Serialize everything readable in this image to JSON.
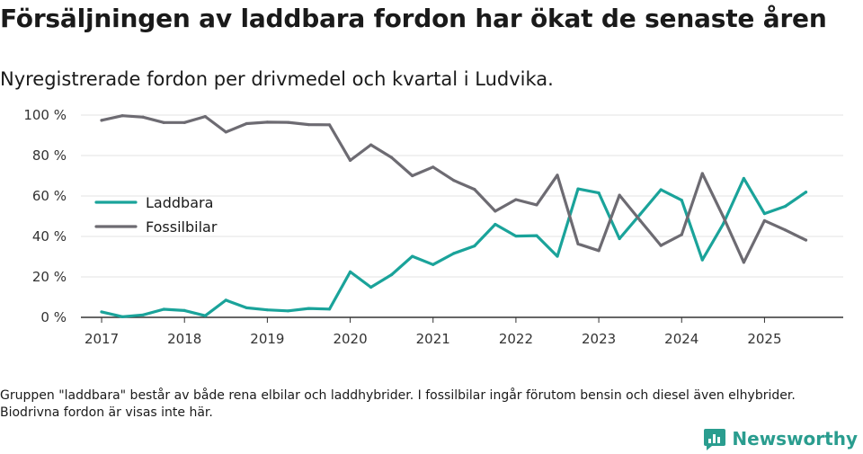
{
  "title": "Försäljningen av laddbara fordon har ökat de senaste åren",
  "subtitle": "Nyregistrerade fordon per drivmedel och kvartal i Ludvika.",
  "footnote": "Gruppen \"laddbara\" består av både rena elbilar och laddhybrider. I fossilbilar ingår förutom bensin och diesel även elhybrider. Biodrivna fordon är visas inte här.",
  "brand": {
    "name": "Newsworthy",
    "color": "#2a9d8f"
  },
  "chart_data": {
    "type": "line",
    "title": "Försäljningen av laddbara fordon har ökat de senaste åren",
    "xlabel": "",
    "ylabel": "",
    "ylim": [
      0,
      100
    ],
    "yticks": [
      0,
      20,
      40,
      60,
      80,
      100
    ],
    "ytick_labels": [
      "0 %",
      "20 %",
      "40 %",
      "60 %",
      "80 %",
      "100 %"
    ],
    "xlim": [
      2016.75,
      2025.95
    ],
    "xticks": [
      2017,
      2018,
      2019,
      2020,
      2021,
      2022,
      2023,
      2024,
      2025
    ],
    "xtick_labels": [
      "2017",
      "2018",
      "2019",
      "2020",
      "2021",
      "2022",
      "2023",
      "2024",
      "2025"
    ],
    "grid": true,
    "legend_position": "middle-left",
    "x": [
      2017.0,
      2017.25,
      2017.5,
      2017.75,
      2018.0,
      2018.25,
      2018.5,
      2018.75,
      2019.0,
      2019.25,
      2019.5,
      2019.75,
      2020.0,
      2020.25,
      2020.5,
      2020.75,
      2021.0,
      2021.25,
      2021.5,
      2021.75,
      2022.0,
      2022.25,
      2022.5,
      2022.75,
      2023.0,
      2023.25,
      2023.5,
      2023.75,
      2024.0,
      2024.25,
      2024.5,
      2024.75,
      2025.0,
      2025.25,
      2025.5
    ],
    "series": [
      {
        "name": "Laddbara",
        "color": "#1aa39a",
        "values": [
          2.7,
          0.3,
          1.2,
          4.0,
          3.4,
          0.8,
          8.5,
          4.7,
          3.7,
          3.2,
          4.4,
          4.1,
          22.5,
          14.9,
          21.1,
          30.2,
          26.1,
          31.6,
          35.3,
          46.0,
          40.2,
          40.4,
          30.2,
          63.5,
          61.5,
          38.9,
          51.0,
          63.1,
          57.9,
          28.4,
          46.0,
          68.7,
          51.3,
          54.9,
          61.9
        ]
      },
      {
        "name": "Fossilbilar",
        "color": "#6d6b72",
        "values": [
          97.4,
          99.7,
          99.0,
          96.3,
          96.3,
          99.3,
          91.6,
          95.8,
          96.5,
          96.4,
          95.3,
          95.2,
          77.6,
          85.3,
          79.0,
          70.0,
          74.3,
          67.7,
          63.3,
          52.5,
          58.2,
          55.6,
          70.3,
          36.3,
          33.0,
          60.4,
          47.8,
          35.5,
          40.9,
          71.1,
          50.0,
          27.2,
          47.8,
          43.2,
          38.2
        ]
      }
    ]
  }
}
